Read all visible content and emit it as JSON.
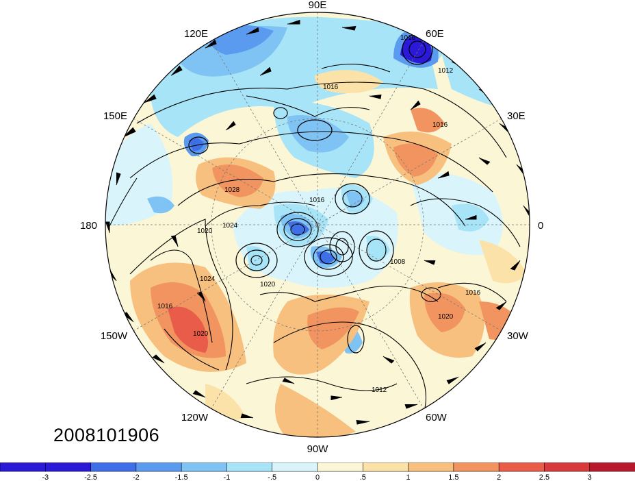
{
  "timestamp": "2008101906",
  "longitude_labels": [
    {
      "text": "90E",
      "lon": 90
    },
    {
      "text": "60E",
      "lon": 60
    },
    {
      "text": "30E",
      "lon": 30
    },
    {
      "text": "0",
      "lon": 0
    },
    {
      "text": "30W",
      "lon": -30
    },
    {
      "text": "60W",
      "lon": -60
    },
    {
      "text": "90W",
      "lon": -90
    },
    {
      "text": "120W",
      "lon": -120
    },
    {
      "text": "150W",
      "lon": -150
    },
    {
      "text": "180",
      "lon": 180
    },
    {
      "text": "150E",
      "lon": 150
    },
    {
      "text": "120E",
      "lon": 120
    }
  ],
  "contour_labels": [
    "1016",
    "1012",
    "1016",
    "1028",
    "1016",
    "1020",
    "1024",
    "1024",
    "1016",
    "1020",
    "1008",
    "1020",
    "1016",
    "1012",
    "1016",
    "1020"
  ],
  "colorbar": {
    "tick_labels": [
      "-3",
      "-2.5",
      "-2",
      "-1.5",
      "-1",
      "-.5",
      "0",
      ".5",
      "1",
      "1.5",
      "2",
      "2.5",
      "3"
    ],
    "colors": [
      "#2a1ad8",
      "#3f6fe6",
      "#5b9bef",
      "#7ec3f4",
      "#a7e4f7",
      "#d9f5fb",
      "#fbf6d6",
      "#fbe2a8",
      "#f7c07e",
      "#f29460",
      "#ea5c4a",
      "#d93a3c",
      "#b8182c"
    ]
  },
  "colors": {
    "background": "#ffffff",
    "coast": "#000000",
    "grid": "#777777"
  }
}
